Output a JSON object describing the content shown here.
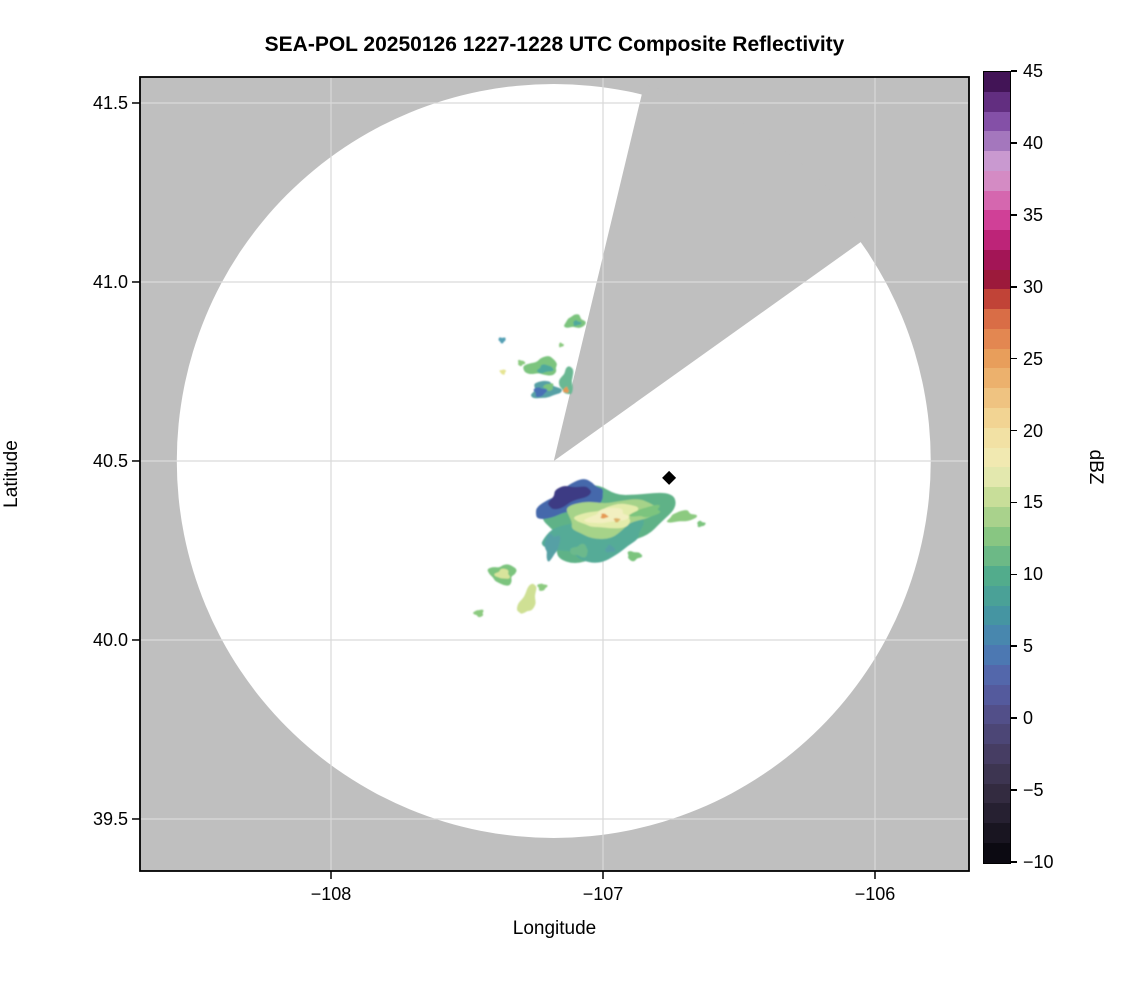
{
  "title": "SEA-POL 20250126 1227-1228 UTC Composite Reflectivity",
  "xaxis": {
    "label": "Longitude"
  },
  "yaxis": {
    "label": "Latitude"
  },
  "colorbar": {
    "label": "dBZ",
    "min": -10,
    "max": 45,
    "bands": 40,
    "ticks": [
      45,
      40,
      35,
      30,
      25,
      20,
      15,
      10,
      5,
      0,
      -5,
      -10
    ],
    "tick_labels": [
      "45",
      "40",
      "35",
      "30",
      "25",
      "20",
      "15",
      "10",
      "5",
      "0",
      "−5",
      "−10"
    ],
    "stops": [
      {
        "v": -10,
        "c": "#06050a"
      },
      {
        "v": -7.5,
        "c": "#1d1826"
      },
      {
        "v": -5,
        "c": "#352d42"
      },
      {
        "v": -2.5,
        "c": "#463d62"
      },
      {
        "v": 0,
        "c": "#514c85"
      },
      {
        "v": 2.5,
        "c": "#5560a8"
      },
      {
        "v": 5,
        "c": "#4a7fb5"
      },
      {
        "v": 7.5,
        "c": "#44989f"
      },
      {
        "v": 10,
        "c": "#52ad8c"
      },
      {
        "v": 12.5,
        "c": "#83c481"
      },
      {
        "v": 15,
        "c": "#c0db93"
      },
      {
        "v": 17.5,
        "c": "#f0edb8"
      },
      {
        "v": 20,
        "c": "#f3dfa0"
      },
      {
        "v": 22.5,
        "c": "#efc17e"
      },
      {
        "v": 25,
        "c": "#e89f5b"
      },
      {
        "v": 27.5,
        "c": "#df764a"
      },
      {
        "v": 29.5,
        "c": "#bb3a33"
      },
      {
        "v": 31,
        "c": "#8f0d3e"
      },
      {
        "v": 33,
        "c": "#b91d71"
      },
      {
        "v": 35,
        "c": "#d4479e"
      },
      {
        "v": 37,
        "c": "#d583be"
      },
      {
        "v": 38.5,
        "c": "#d2a0d4"
      },
      {
        "v": 40,
        "c": "#a87cc0"
      },
      {
        "v": 42,
        "c": "#7a44a0"
      },
      {
        "v": 43.5,
        "c": "#53206d"
      },
      {
        "v": 45,
        "c": "#330a42"
      }
    ]
  },
  "chart_data": {
    "type": "heatmap",
    "subtype": "radar_ppi_composite_reflectivity",
    "title": "SEA-POL 20250126 1227-1228 UTC Composite Reflectivity",
    "xlabel": "Longitude",
    "ylabel": "Latitude",
    "xlim": [
      -108.7022,
      -105.6544
    ],
    "ylim": [
      39.3547,
      41.5726
    ],
    "xticks": [
      -108,
      -107,
      -106
    ],
    "xtick_labels": [
      "−108",
      "−107",
      "−106"
    ],
    "yticks": [
      41.5,
      41.0,
      40.5,
      40.0,
      39.5
    ],
    "ytick_labels": [
      "41.5",
      "41.0",
      "40.5",
      "40.0",
      "39.5"
    ],
    "grid": true,
    "colors": {
      "outside_scan": "#bfbfbf",
      "scan_area": "#ffffff",
      "gridline": "#d9d9d9",
      "frame": "#000000"
    },
    "radar": {
      "name": "SEA-POL",
      "lon": -107.181,
      "lat": 40.5,
      "range_radius_lat_deg": 1.053,
      "blocked_sector_azimuth_deg": [
        13.5,
        54.5
      ]
    },
    "marker": {
      "lon": -106.757,
      "lat": 40.453,
      "shape": "diamond",
      "color": "#000000"
    },
    "echoes": [
      {
        "name": "main-blob-base",
        "lon": -107.0,
        "lat": 40.335,
        "rx": 0.235,
        "ry": 0.095,
        "rot": -10,
        "color": "#5fb287",
        "dbz": 9
      },
      {
        "name": "main-blob-south-teal",
        "lon": -107.026,
        "lat": 40.285,
        "rx": 0.184,
        "ry": 0.056,
        "rot": -8,
        "color": "#55ab97",
        "dbz": 8
      },
      {
        "name": "main-blob-nw-blue",
        "lon": -107.114,
        "lat": 40.391,
        "rx": 0.132,
        "ry": 0.039,
        "rot": -20,
        "color": "#4467ab",
        "dbz": 3
      },
      {
        "name": "main-blob-nw-purple",
        "lon": -107.129,
        "lat": 40.402,
        "rx": 0.081,
        "ry": 0.025,
        "rot": -20,
        "color": "#3c3a84",
        "dbz": 0
      },
      {
        "name": "main-blob-inner-green",
        "lon": -106.982,
        "lat": 40.344,
        "rx": 0.162,
        "ry": 0.05,
        "rot": -9,
        "color": "#a6d389",
        "dbz": 13
      },
      {
        "name": "main-blob-yellowgreen",
        "lon": -106.978,
        "lat": 40.344,
        "rx": 0.11,
        "ry": 0.031,
        "rot": -9,
        "color": "#e3ecab",
        "dbz": 16
      },
      {
        "name": "main-blob-pale-core",
        "lon": -106.982,
        "lat": 40.346,
        "rx": 0.074,
        "ry": 0.02,
        "rot": -9,
        "color": "#f2efc0",
        "dbz": 17
      },
      {
        "name": "main-blob-orange-speck",
        "lon": -106.996,
        "lat": 40.346,
        "rx": 0.013,
        "ry": 0.007,
        "rot": 0,
        "color": "#e59a52",
        "dbz": 24
      },
      {
        "name": "main-blob-tan-speck",
        "lon": -106.949,
        "lat": 40.335,
        "rx": 0.011,
        "ry": 0.006,
        "rot": 0,
        "color": "#ddb168",
        "dbz": 21
      },
      {
        "name": "east-strip-a",
        "lon": -106.838,
        "lat": 40.358,
        "rx": 0.055,
        "ry": 0.014,
        "rot": -12,
        "color": "#7cc47e",
        "dbz": 11
      },
      {
        "name": "east-strip-b",
        "lon": -106.71,
        "lat": 40.344,
        "rx": 0.051,
        "ry": 0.015,
        "rot": -8,
        "color": "#8cca80",
        "dbz": 12
      },
      {
        "name": "east-dot",
        "lon": -106.64,
        "lat": 40.324,
        "rx": 0.015,
        "ry": 0.008,
        "rot": 0,
        "color": "#7cc47e",
        "dbz": 11
      },
      {
        "name": "south-strip-west",
        "lon": -107.188,
        "lat": 40.263,
        "rx": 0.026,
        "ry": 0.036,
        "rot": 12,
        "color": "#57a0a5",
        "dbz": 7
      },
      {
        "name": "south-bit-1",
        "lon": -107.085,
        "lat": 40.249,
        "rx": 0.033,
        "ry": 0.017,
        "rot": 0,
        "color": "#6cb98c",
        "dbz": 10
      },
      {
        "name": "south-bit-2",
        "lon": -106.974,
        "lat": 40.254,
        "rx": 0.018,
        "ry": 0.01,
        "rot": 0,
        "color": "#57a0a5",
        "dbz": 7
      },
      {
        "name": "south-bit-3",
        "lon": -106.886,
        "lat": 40.235,
        "rx": 0.026,
        "ry": 0.013,
        "rot": 0,
        "color": "#7cc47e",
        "dbz": 11
      },
      {
        "name": "sw-blob",
        "lon": -107.368,
        "lat": 40.184,
        "rx": 0.048,
        "ry": 0.028,
        "rot": 0,
        "color": "#7cc47e",
        "dbz": 11
      },
      {
        "name": "sw-blob-core",
        "lon": -107.368,
        "lat": 40.184,
        "rx": 0.026,
        "ry": 0.014,
        "rot": 0,
        "color": "#d8e49c",
        "dbz": 15
      },
      {
        "name": "sw-diagonal-strip",
        "lon": -107.276,
        "lat": 40.111,
        "rx": 0.026,
        "ry": 0.045,
        "rot": 25,
        "color": "#cfe094",
        "dbz": 15
      },
      {
        "name": "sw-bit",
        "lon": -107.224,
        "lat": 40.148,
        "rx": 0.017,
        "ry": 0.01,
        "rot": 0,
        "color": "#8cca80",
        "dbz": 12
      },
      {
        "name": "sw-far-dot",
        "lon": -107.456,
        "lat": 40.075,
        "rx": 0.018,
        "ry": 0.01,
        "rot": 0,
        "color": "#8cca80",
        "dbz": 12
      },
      {
        "name": "north-top-blob",
        "lon": -107.103,
        "lat": 40.888,
        "rx": 0.037,
        "ry": 0.018,
        "rot": -5,
        "color": "#7cc47e",
        "dbz": 11
      },
      {
        "name": "north-top-blob-core",
        "lon": -107.096,
        "lat": 40.885,
        "rx": 0.015,
        "ry": 0.007,
        "rot": 0,
        "color": "#4fa99c",
        "dbz": 8
      },
      {
        "name": "north-west-dot",
        "lon": -107.371,
        "lat": 40.838,
        "rx": 0.013,
        "ry": 0.008,
        "rot": 0,
        "color": "#55a0b5",
        "dbz": 6
      },
      {
        "name": "north-arc-blob",
        "lon": -107.224,
        "lat": 40.763,
        "rx": 0.063,
        "ry": 0.024,
        "rot": -8,
        "color": "#7cc47e",
        "dbz": 11
      },
      {
        "name": "north-arc-teal",
        "lon": -107.213,
        "lat": 40.757,
        "rx": 0.029,
        "ry": 0.011,
        "rot": -8,
        "color": "#4fa99c",
        "dbz": 8
      },
      {
        "name": "north-small-green",
        "lon": -107.301,
        "lat": 40.774,
        "rx": 0.013,
        "ry": 0.008,
        "rot": 0,
        "color": "#8cca80",
        "dbz": 12
      },
      {
        "name": "north-yellow-dot",
        "lon": -107.368,
        "lat": 40.749,
        "rx": 0.011,
        "ry": 0.007,
        "rot": 0,
        "color": "#e5e492",
        "dbz": 17
      },
      {
        "name": "north-vert-strip",
        "lon": -107.132,
        "lat": 40.723,
        "rx": 0.024,
        "ry": 0.039,
        "rot": 6,
        "color": "#6ab893",
        "dbz": 9
      },
      {
        "name": "north-bottom-blob",
        "lon": -107.213,
        "lat": 40.698,
        "rx": 0.051,
        "ry": 0.024,
        "rot": -4,
        "color": "#57a0a5",
        "dbz": 7
      },
      {
        "name": "north-bottom-blue",
        "lon": -107.232,
        "lat": 40.693,
        "rx": 0.022,
        "ry": 0.013,
        "rot": 0,
        "color": "#4a6fb5",
        "dbz": 4
      },
      {
        "name": "north-bottom-green",
        "lon": -107.199,
        "lat": 40.707,
        "rx": 0.018,
        "ry": 0.01,
        "rot": 0,
        "color": "#7cc47e",
        "dbz": 11
      },
      {
        "name": "north-orange-pixel",
        "lon": -107.136,
        "lat": 40.698,
        "rx": 0.01,
        "ry": 0.008,
        "rot": 0,
        "color": "#e59a52",
        "dbz": 24
      },
      {
        "name": "north-tiny-dot",
        "lon": -107.154,
        "lat": 40.824,
        "rx": 0.009,
        "ry": 0.006,
        "rot": 0,
        "color": "#8cca80",
        "dbz": 12
      }
    ]
  }
}
